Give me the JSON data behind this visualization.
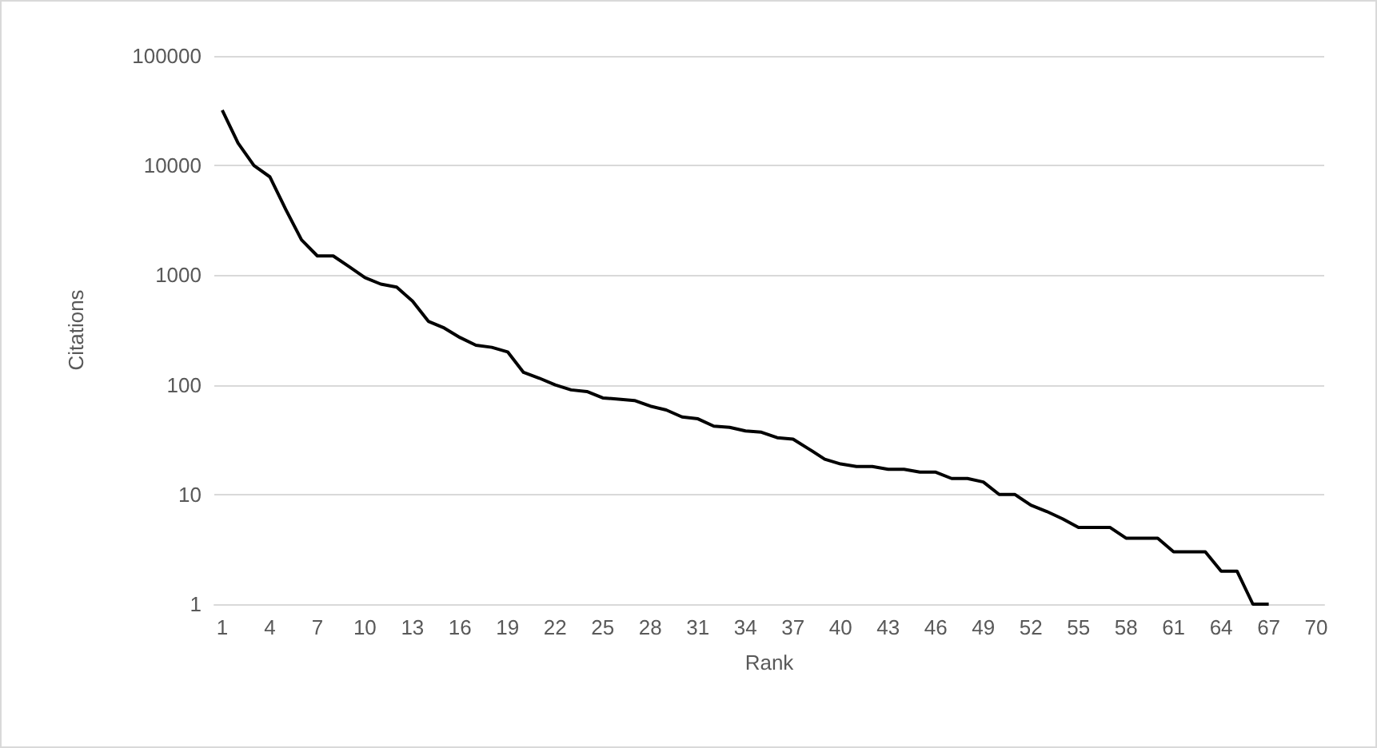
{
  "chart_data": {
    "type": "line",
    "xlabel": "Rank",
    "ylabel": "Citations",
    "categories": [
      "1",
      null,
      null,
      "4",
      null,
      null,
      "7",
      null,
      null,
      "10",
      null,
      null,
      "13",
      null,
      null,
      "16",
      null,
      null,
      "19",
      null,
      null,
      "22",
      null,
      null,
      "25",
      null,
      null,
      "28",
      null,
      null,
      "31",
      null,
      null,
      "34",
      null,
      null,
      "37",
      null,
      null,
      "40",
      null,
      null,
      "43",
      null,
      null,
      "46",
      null,
      null,
      "49",
      null,
      null,
      "52",
      null,
      null,
      "55",
      null,
      null,
      "58",
      null,
      null,
      "61",
      null,
      null,
      "64",
      null,
      null,
      "67",
      null,
      null,
      "70"
    ],
    "series": [
      {
        "color": "#000000",
        "values": [
          32000,
          16000,
          10000,
          7900,
          4000,
          2100,
          1500,
          1500,
          1200,
          950,
          830,
          780,
          580,
          380,
          330,
          270,
          230,
          220,
          200,
          130,
          115,
          100,
          90,
          87,
          76,
          74,
          72,
          64,
          59,
          51,
          49,
          42,
          41,
          38,
          37,
          33,
          32,
          26,
          21,
          19,
          18,
          18,
          17,
          17,
          16,
          16,
          14,
          14,
          13,
          10,
          10,
          8,
          7,
          6,
          5,
          5,
          5,
          4,
          4,
          4,
          3,
          3,
          3,
          2,
          2,
          1,
          1,
          null,
          null,
          null
        ]
      }
    ],
    "ylim": [
      1,
      100000
    ],
    "yticks": [
      1,
      10,
      100,
      1000,
      10000,
      100000
    ],
    "log": "y",
    "grid": "y",
    "marker": "none",
    "line_style": "solid"
  }
}
